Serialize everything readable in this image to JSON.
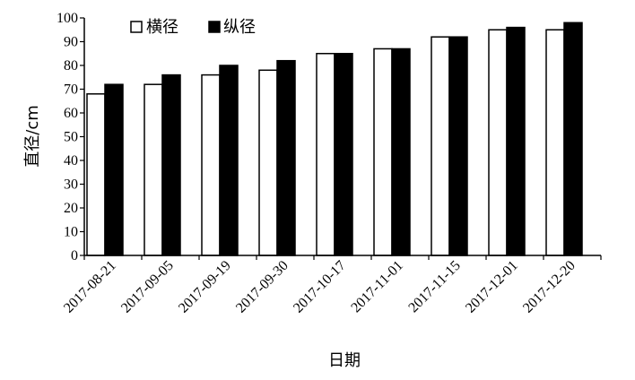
{
  "chart_data": {
    "type": "bar",
    "categories": [
      "2017-08-21",
      "2017-09-05",
      "2017-09-19",
      "2017-09-30",
      "2017-10-17",
      "2017-11-01",
      "2017-11-15",
      "2017-12-01",
      "2017-12-20"
    ],
    "series": [
      {
        "name": "横径",
        "values": [
          68,
          72,
          76,
          78,
          85,
          87,
          92,
          95,
          95
        ],
        "color": "#ffffff"
      },
      {
        "name": "纵径",
        "values": [
          72,
          76,
          80,
          82,
          85,
          87,
          92,
          96,
          98
        ],
        "color": "#000000"
      }
    ],
    "xlabel": "日期",
    "ylabel": "直径/cm",
    "ylim": [
      0,
      100
    ],
    "yticks": [
      0,
      10,
      20,
      30,
      40,
      50,
      60,
      70,
      80,
      90,
      100
    ],
    "grid": false,
    "legend_position": "top-left"
  }
}
